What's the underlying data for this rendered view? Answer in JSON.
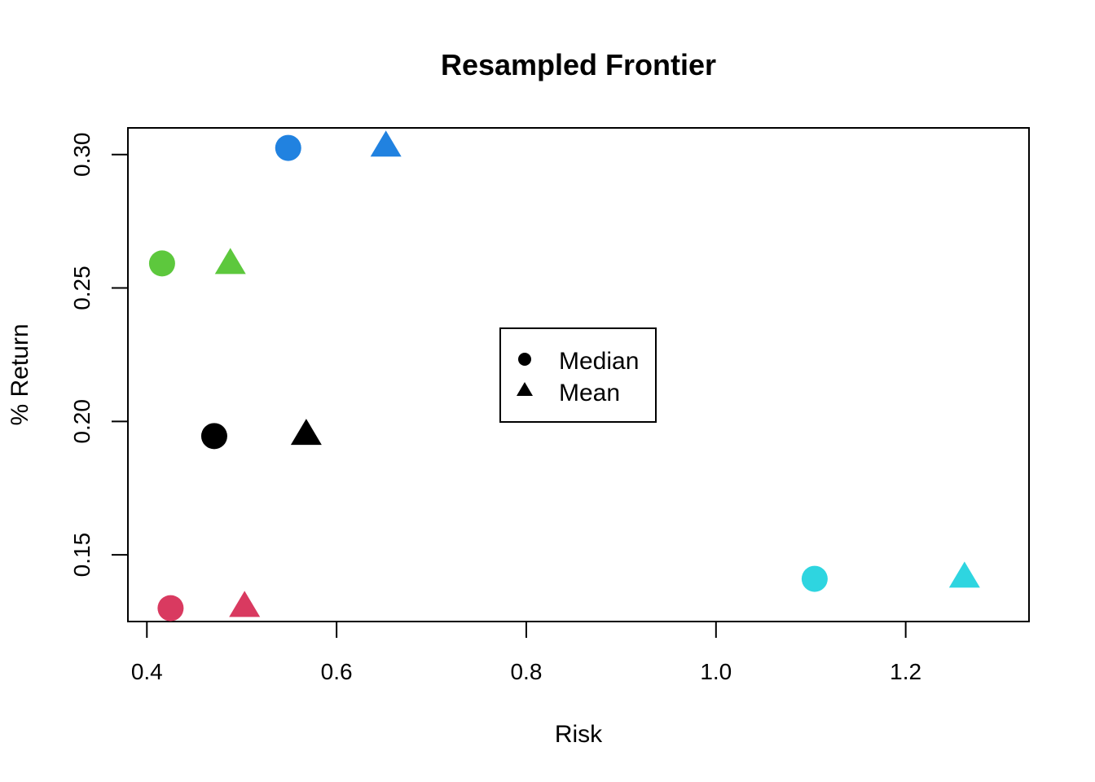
{
  "chart_data": {
    "type": "scatter",
    "title": "Resampled Frontier",
    "xlabel": "Risk",
    "ylabel": "% Return",
    "xlim": [
      0.38,
      1.33
    ],
    "ylim": [
      0.125,
      0.31
    ],
    "xticks": [
      0.4,
      0.6,
      0.8,
      1.0,
      1.2
    ],
    "xtick_labels": [
      "0.4",
      "0.6",
      "0.8",
      "1.0",
      "1.2"
    ],
    "yticks": [
      0.15,
      0.2,
      0.25,
      0.3
    ],
    "ytick_labels": [
      "0.15",
      "0.20",
      "0.25",
      "0.30"
    ],
    "grid": false,
    "legend": {
      "placement": "center",
      "entries": [
        {
          "label": "Median",
          "marker": "circle"
        },
        {
          "label": "Mean",
          "marker": "triangle"
        }
      ]
    },
    "points": [
      {
        "x": 0.549,
        "y": 0.3025,
        "marker": "circle",
        "color": "#2182E0"
      },
      {
        "x": 0.652,
        "y": 0.3035,
        "marker": "triangle",
        "color": "#2182E0"
      },
      {
        "x": 0.416,
        "y": 0.2592,
        "marker": "circle",
        "color": "#5DC83D"
      },
      {
        "x": 0.488,
        "y": 0.2595,
        "marker": "triangle",
        "color": "#5DC83D"
      },
      {
        "x": 0.471,
        "y": 0.1945,
        "marker": "circle",
        "color": "#000000"
      },
      {
        "x": 0.568,
        "y": 0.1955,
        "marker": "triangle",
        "color": "#000000"
      },
      {
        "x": 0.425,
        "y": 0.13,
        "marker": "circle",
        "color": "#D93A60"
      },
      {
        "x": 0.503,
        "y": 0.131,
        "marker": "triangle",
        "color": "#D93A60"
      },
      {
        "x": 1.104,
        "y": 0.141,
        "marker": "circle",
        "color": "#2ED5E0"
      },
      {
        "x": 1.262,
        "y": 0.142,
        "marker": "triangle",
        "color": "#2ED5E0"
      }
    ]
  }
}
